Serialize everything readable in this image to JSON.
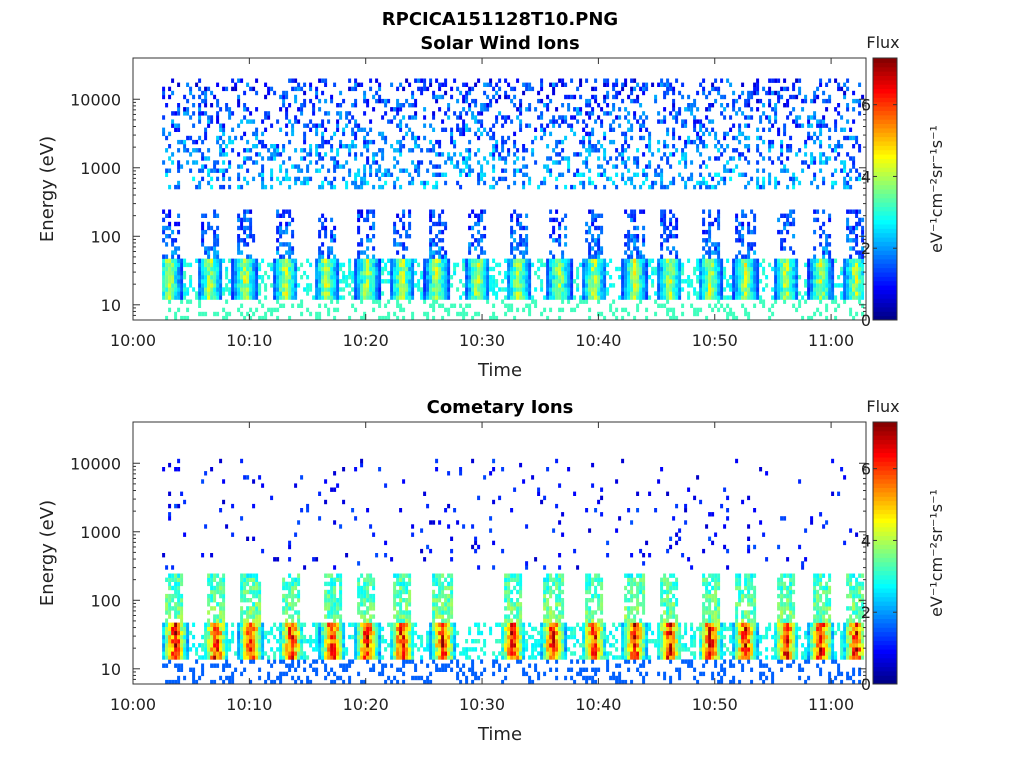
{
  "figure_title": "RPCICA151128T10.PNG",
  "colorbar": {
    "title": "Flux",
    "label": "eV⁻¹cm⁻²sr⁻¹s⁻¹",
    "ticks": [
      "0",
      "2",
      "4",
      "6"
    ],
    "range": [
      0,
      7.3
    ],
    "colormap": "jet"
  },
  "chart_data": [
    {
      "type": "heatmap",
      "title": "Solar Wind Ions",
      "xlabel": "Time",
      "ylabel": "Energy (eV)",
      "xticks": [
        "10:00",
        "10:10",
        "10:20",
        "10:30",
        "10:40",
        "10:50",
        "11:00"
      ],
      "xlim_minutes": [
        0,
        63
      ],
      "yticks": [
        "10",
        "100",
        "1000",
        "10000"
      ],
      "yscale": "log",
      "ylim": [
        6,
        40000
      ],
      "data_start_minute": 2.5,
      "pulse_times_minutes": [
        3,
        6.5,
        9.5,
        13,
        16.5,
        20,
        23,
        26,
        29.5,
        33,
        36.5,
        39.5,
        43,
        46,
        49.5,
        52.5,
        56,
        59,
        62
      ],
      "core_energy_eV": [
        12,
        45
      ],
      "core_peak_flux": 4.5,
      "background_energy_eV": [
        500,
        20000
      ],
      "background_flux": [
        1,
        2.6
      ]
    },
    {
      "type": "heatmap",
      "title": "Cometary Ions",
      "xlabel": "Time",
      "ylabel": "Energy (eV)",
      "xticks": [
        "10:00",
        "10:10",
        "10:20",
        "10:30",
        "10:40",
        "10:50",
        "11:00"
      ],
      "xlim_minutes": [
        0,
        63
      ],
      "yticks": [
        "10",
        "100",
        "1000",
        "10000"
      ],
      "yscale": "log",
      "ylim": [
        6,
        40000
      ],
      "data_start_minute": 2.5,
      "pulse_times_minutes": [
        3.5,
        7,
        10,
        13.5,
        17,
        20,
        23,
        26.5,
        32.5,
        36,
        39.5,
        43,
        46,
        49.5,
        52.5,
        56,
        59,
        62
      ],
      "core_energy_eV": [
        14,
        45
      ],
      "core_peak_flux": 7,
      "background_energy_eV": [
        300,
        12000
      ],
      "background_flux": [
        0.5,
        1.5
      ]
    }
  ]
}
